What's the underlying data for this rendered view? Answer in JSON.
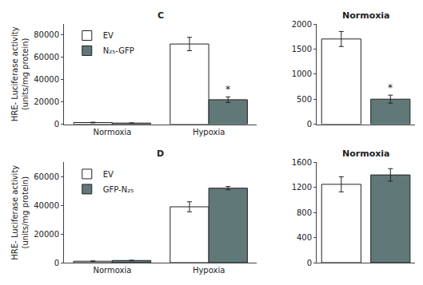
{
  "chart_data": [
    {
      "type": "bar",
      "title": "C",
      "categories": [
        "Normoxia",
        "Hypoxia"
      ],
      "series": [
        {
          "name": "EV",
          "color": "#FFFFFF",
          "values": [
            1500,
            72000
          ],
          "errors": [
            300,
            6000
          ]
        },
        {
          "name": "N₂₅-GFP",
          "color": "#607878",
          "values": [
            1000,
            22000
          ],
          "errors": [
            200,
            2500
          ]
        }
      ],
      "ylabel": "HRE- Luciferase activity\n(units/mg protein)",
      "ylim": [
        0,
        90000
      ],
      "yticks": [
        0,
        20000,
        40000,
        60000,
        80000
      ],
      "annotations": [
        {
          "text": "*",
          "category_index": 1,
          "series": "N₂₅-GFP"
        }
      ],
      "legend": "upper left",
      "grid": false
    },
    {
      "type": "bar",
      "title": "Normoxia",
      "categories": [
        null,
        null
      ],
      "values": [
        1700,
        500
      ],
      "errors": [
        150,
        80
      ],
      "colors": [
        "#FFFFFF",
        "#607878"
      ],
      "ylim": [
        0,
        2000
      ],
      "yticks": [
        0,
        500,
        1000,
        1500,
        2000
      ],
      "annotations": [
        {
          "text": "*",
          "category_index": 1
        }
      ],
      "tick_labels": "y",
      "grid": false
    },
    {
      "type": "bar",
      "title": "D",
      "categories": [
        "Normoxia",
        "Hypoxia"
      ],
      "series": [
        {
          "name": "EV",
          "color": "#FFFFFF",
          "values": [
            1000,
            39000
          ],
          "errors": [
            200,
            3500
          ]
        },
        {
          "name": "GFP-N₂₅",
          "color": "#607878",
          "values": [
            1500,
            52000
          ],
          "errors": [
            200,
            1200
          ]
        }
      ],
      "ylabel": "HRE- Luciferase activity\n(units/mg protein)",
      "ylim": [
        0,
        70000
      ],
      "yticks": [
        0,
        20000,
        40000,
        60000
      ],
      "legend": "upper left",
      "grid": false
    },
    {
      "type": "bar",
      "title": "Normoxia",
      "categories": [
        null,
        null
      ],
      "values": [
        1250,
        1400
      ],
      "errors": [
        120,
        100
      ],
      "colors": [
        "#FFFFFF",
        "#607878"
      ],
      "ylim": [
        0,
        1600
      ],
      "yticks": [
        0,
        400,
        800,
        1200,
        1600
      ],
      "tick_labels": "y",
      "grid": false
    }
  ]
}
